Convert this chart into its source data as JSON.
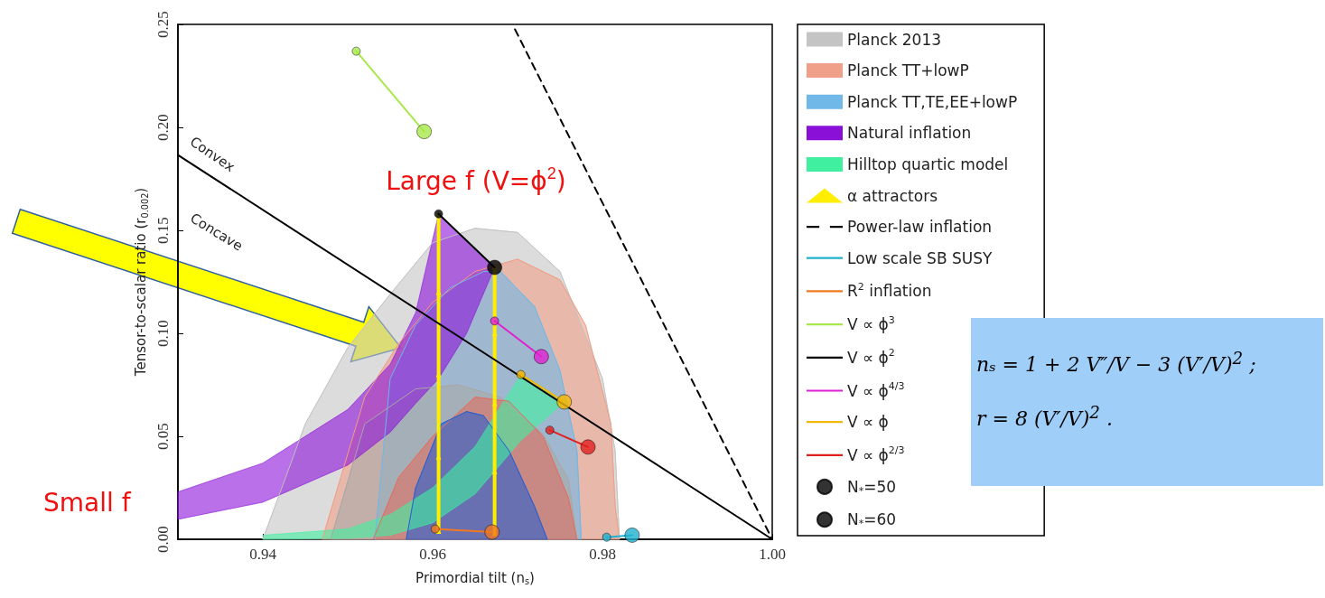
{
  "chart_data": {
    "type": "line",
    "xlabel": "Primordial tilt (n$_{s}$)",
    "ylabel": "Tensor-to-scalar ratio (r$_{0.002}$)",
    "xlim": [
      0.93,
      1.0
    ],
    "xticks": [
      0.94,
      0.96,
      0.98,
      {
        "value": 1.0,
        "label": "1.00"
      }
    ],
    "ylim": [
      0,
      0.25
    ],
    "yticks": [
      {
        "value": 0,
        "label": "0.00"
      },
      0.05,
      {
        "value": 0.1,
        "label": "0.10"
      },
      0.15,
      {
        "value": 0.2,
        "label": "0.20"
      },
      0.25
    ],
    "grid": false,
    "legend": "right",
    "series": [
      {
        "type": "area",
        "name": "Planck 2013",
        "color": "#c4c4c4",
        "x": [
          0.94,
          0.945,
          0.95,
          0.955,
          0.96,
          0.965,
          0.97,
          0.975,
          0.98,
          0.9815,
          0.982
        ],
        "values": [
          0,
          0.056,
          0.093,
          0.119,
          0.144,
          0.151,
          0.149,
          0.13,
          0.078,
          0.043,
          0
        ]
      },
      {
        "type": "area",
        "name": "Planck TT+lowP",
        "color": "#f0a088",
        "x": [
          0.947,
          0.952,
          0.956,
          0.96,
          0.965,
          0.97,
          0.975,
          0.978,
          0.981,
          0.9815,
          0.982
        ],
        "values": [
          0,
          0.069,
          0.095,
          0.115,
          0.13,
          0.136,
          0.126,
          0.104,
          0.056,
          0.016,
          0
        ]
      },
      {
        "type": "area",
        "name": "Planck TT,TE,EE+lowP",
        "color": "#70b8e8",
        "x": [
          0.9532,
          0.955,
          0.958,
          0.962,
          0.966,
          0.968,
          0.972,
          0.975,
          0.977,
          0.9775
        ],
        "values": [
          0,
          0.078,
          0.104,
          0.122,
          0.13,
          0.13,
          0.113,
          0.082,
          0.043,
          0
        ]
      },
      {
        "type": "area",
        "color": "#a8a8a8",
        "x": [
          0.948,
          0.952,
          0.958,
          0.963,
          0.968,
          0.973,
          0.976,
          0.977
        ],
        "values": [
          0,
          0.056,
          0.073,
          0.075,
          0.069,
          0.051,
          0.029,
          0
        ]
      },
      {
        "type": "area",
        "color": "#e07060",
        "x": [
          0.953,
          0.956,
          0.96,
          0.965,
          0.969,
          0.973,
          0.976,
          0.977
        ],
        "values": [
          0,
          0.03,
          0.05,
          0.069,
          0.067,
          0.05,
          0.02,
          0
        ]
      },
      {
        "type": "area",
        "color": "#2a5fd0",
        "x": [
          0.9569,
          0.958,
          0.961,
          0.964,
          0.966,
          0.969,
          0.972,
          0.9735
        ],
        "values": [
          0,
          0.025,
          0.056,
          0.062,
          0.06,
          0.043,
          0.016,
          0
        ]
      },
      {
        "type": "area",
        "name": "Natural inflation",
        "color": "#8a10d8",
        "x": [
          0.93,
          0.94,
          0.95,
          0.955,
          0.958,
          0.9607,
          0.964,
          0.9673
        ],
        "values": [
          null,
          null,
          null,
          null,
          null,
          null,
          null,
          null
        ],
        "upper": [
          0.023,
          0.037,
          0.063,
          0.085,
          0.11,
          0.158,
          0.145,
          0.132
        ],
        "lower": [
          0.0097,
          0.018,
          0.036,
          0.052,
          0.066,
          0.078,
          0.1,
          0.132
        ]
      },
      {
        "type": "area",
        "name": "Hilltop quartic model",
        "color": "#40f0a0",
        "x": [
          0.94,
          0.95,
          0.955,
          0.96,
          0.965,
          0.9704,
          0.9755
        ],
        "values": [
          null,
          null,
          null,
          null,
          null,
          null,
          null
        ],
        "upper": [
          0.002,
          0.005,
          0.012,
          0.025,
          0.045,
          0.08,
          0.0667
        ],
        "lower": [
          0,
          0.0005,
          0.002,
          0.008,
          0.022,
          0.048,
          0.0667
        ]
      },
      {
        "color": "#000000",
        "x": [
          0.93,
          1.0
        ],
        "values": [
          0.1866,
          0
        ]
      },
      {
        "name": "α attractors",
        "color": "#ffee00",
        "marker": "triangle",
        "x": [
          0.9607,
          0.9607,
          0.9607,
          0.9607,
          0.9607,
          null,
          0.9673,
          0.9673,
          0.9673,
          0.9673,
          0.9673
        ],
        "values": [
          0.158,
          0.12,
          0.08,
          0.04,
          0.004,
          null,
          0.132,
          0.1,
          0.066,
          0.033,
          0.003
        ]
      },
      {
        "name": "Power-law inflation",
        "color": "#000000",
        "line_style": "dashed",
        "x": [
          0.9697,
          1.0
        ],
        "values": [
          0.2476,
          0
        ]
      },
      {
        "name": "Low scale SB SUSY",
        "color": "#20b0d0",
        "x": [
          0.9805,
          0.9835
        ],
        "values": [
          0.001,
          0.002
        ]
      },
      {
        "name": "R$^{2}$ inflation",
        "color": "#f07820",
        "x": [
          0.9603,
          0.967
        ],
        "values": [
          0.005,
          0.0035
        ]
      },
      {
        "name": "V ∝ ϕ$^{3}$",
        "color": "#a8e84a",
        "x": [
          0.951,
          0.959
        ],
        "values": [
          0.237,
          0.198
        ]
      },
      {
        "name": "V ∝ ϕ$^{2}$",
        "color": "#000000",
        "x": [
          0.9607,
          0.9673
        ],
        "values": [
          0.158,
          0.132
        ]
      },
      {
        "name": "V ∝ ϕ$^{4/3}$",
        "color": "#e020d0",
        "x": [
          0.9673,
          0.9728
        ],
        "values": [
          0.106,
          0.0887
        ]
      },
      {
        "name": "V ∝ ϕ",
        "color": "#f5b800",
        "x": [
          0.9704,
          0.9755
        ],
        "values": [
          0.08,
          0.0667
        ]
      },
      {
        "name": "V ∝ ϕ$^{2/3}$",
        "color": "#e02020",
        "x": [
          0.9738,
          0.9783
        ],
        "values": [
          0.053,
          0.0448
        ]
      },
      {
        "type": "scatter",
        "name": "N$_{*}$=50",
        "color": "#000000",
        "marker": "circle",
        "x": [
          0.951,
          0.9607,
          0.9673,
          0.9704,
          0.9738,
          0.9603,
          0.9805
        ],
        "values": [
          0.237,
          0.158,
          0.106,
          0.08,
          0.053,
          0.005,
          0.001
        ],
        "colors": [
          "#a8e84a",
          "#000000",
          "#e020d0",
          "#f5b800",
          "#e02020",
          "#f07820",
          "#20b0d0"
        ]
      },
      {
        "type": "scatter",
        "name": "N$_{*}$=60",
        "color": "#000000",
        "marker": "circle",
        "x": [
          0.959,
          0.9673,
          0.9728,
          0.9755,
          0.9783,
          0.967,
          0.9835
        ],
        "values": [
          0.198,
          0.132,
          0.0887,
          0.0667,
          0.0448,
          0.0035,
          0.002
        ],
        "colors": [
          "#a8e84a",
          "#000000",
          "#e020d0",
          "#f5b800",
          "#e02020",
          "#f07820",
          "#20b0d0"
        ]
      }
    ],
    "annotations": [
      "Convex",
      "Concave",
      "Large f (V=ϕ$^{2}$)",
      "Small f",
      "nₛ = 1 + 2 V″/V − 3 (V′/V)$^{2}$ ;",
      "r = 8 (V′/V)$^{2}$ ."
    ]
  }
}
